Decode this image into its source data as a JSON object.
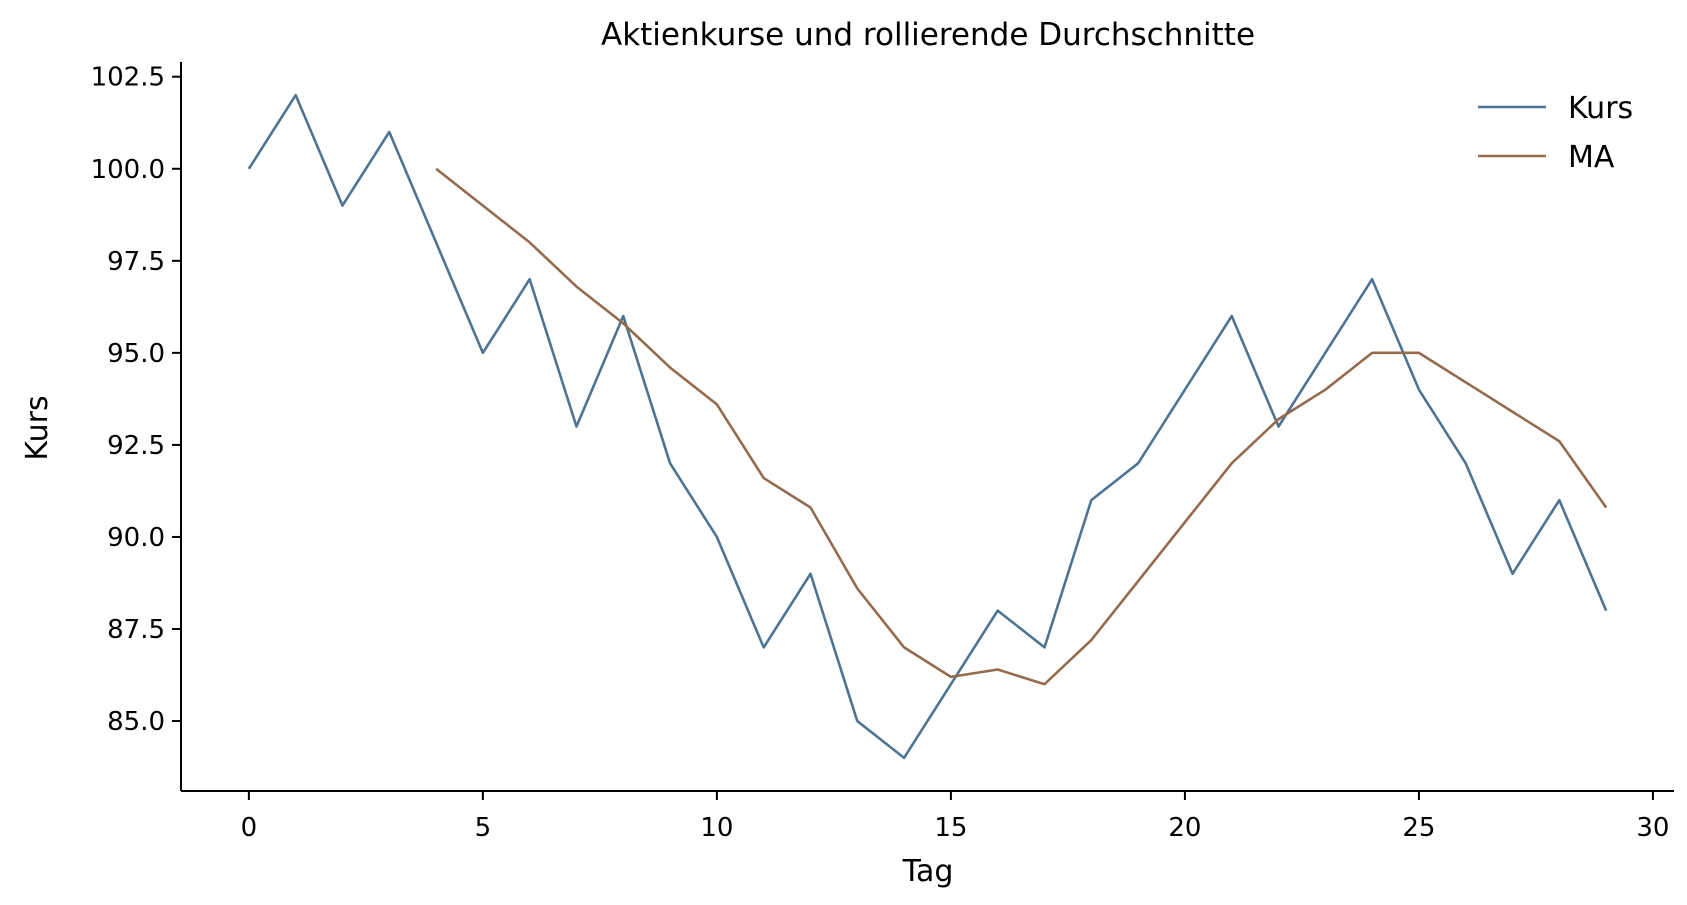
{
  "chart_data": {
    "type": "line",
    "title": "Aktienkurse und rollierende Durchschnitte",
    "xlabel": "Tag",
    "ylabel": "Kurs",
    "xlim": [
      -1.45,
      30.45
    ],
    "ylim": [
      83.1,
      102.9
    ],
    "xticks": [
      0,
      5,
      10,
      15,
      20,
      25,
      30
    ],
    "xtick_labels": [
      "0",
      "5",
      "10",
      "15",
      "20",
      "25",
      "30"
    ],
    "yticks": [
      85.0,
      87.5,
      90.0,
      92.5,
      95.0,
      97.5,
      100.0,
      102.5
    ],
    "ytick_labels": [
      "85.0",
      "87.5",
      "90.0",
      "92.5",
      "95.0",
      "97.5",
      "100.0",
      "102.5"
    ],
    "grid": false,
    "legend_position": "top-right",
    "series": [
      {
        "name": "Kurs",
        "color": "#4e7494",
        "x": [
          0,
          1,
          2,
          3,
          4,
          5,
          6,
          7,
          8,
          9,
          10,
          11,
          12,
          13,
          14,
          15,
          16,
          17,
          18,
          19,
          20,
          21,
          22,
          23,
          24,
          25,
          26,
          27,
          28,
          29
        ],
        "y": [
          100,
          102,
          99,
          101,
          98,
          95,
          97,
          93,
          96,
          92,
          90,
          87,
          89,
          85,
          84,
          86,
          88,
          87,
          91,
          92,
          94,
          96,
          93,
          95,
          97,
          94,
          92,
          89,
          91,
          88
        ]
      },
      {
        "name": "MA",
        "color": "#956b4e",
        "x": [
          4,
          5,
          6,
          7,
          8,
          9,
          10,
          11,
          12,
          13,
          14,
          15,
          16,
          17,
          18,
          19,
          20,
          21,
          22,
          23,
          24,
          25,
          26,
          27,
          28,
          29
        ],
        "y": [
          100.0,
          99.0,
          98.0,
          96.8,
          95.8,
          94.6,
          93.6,
          91.6,
          90.8,
          88.6,
          87.0,
          86.2,
          86.4,
          86.0,
          87.2,
          88.8,
          90.4,
          92.0,
          93.2,
          94.0,
          95.0,
          95.0,
          94.2,
          93.4,
          92.6,
          90.8
        ]
      }
    ]
  }
}
